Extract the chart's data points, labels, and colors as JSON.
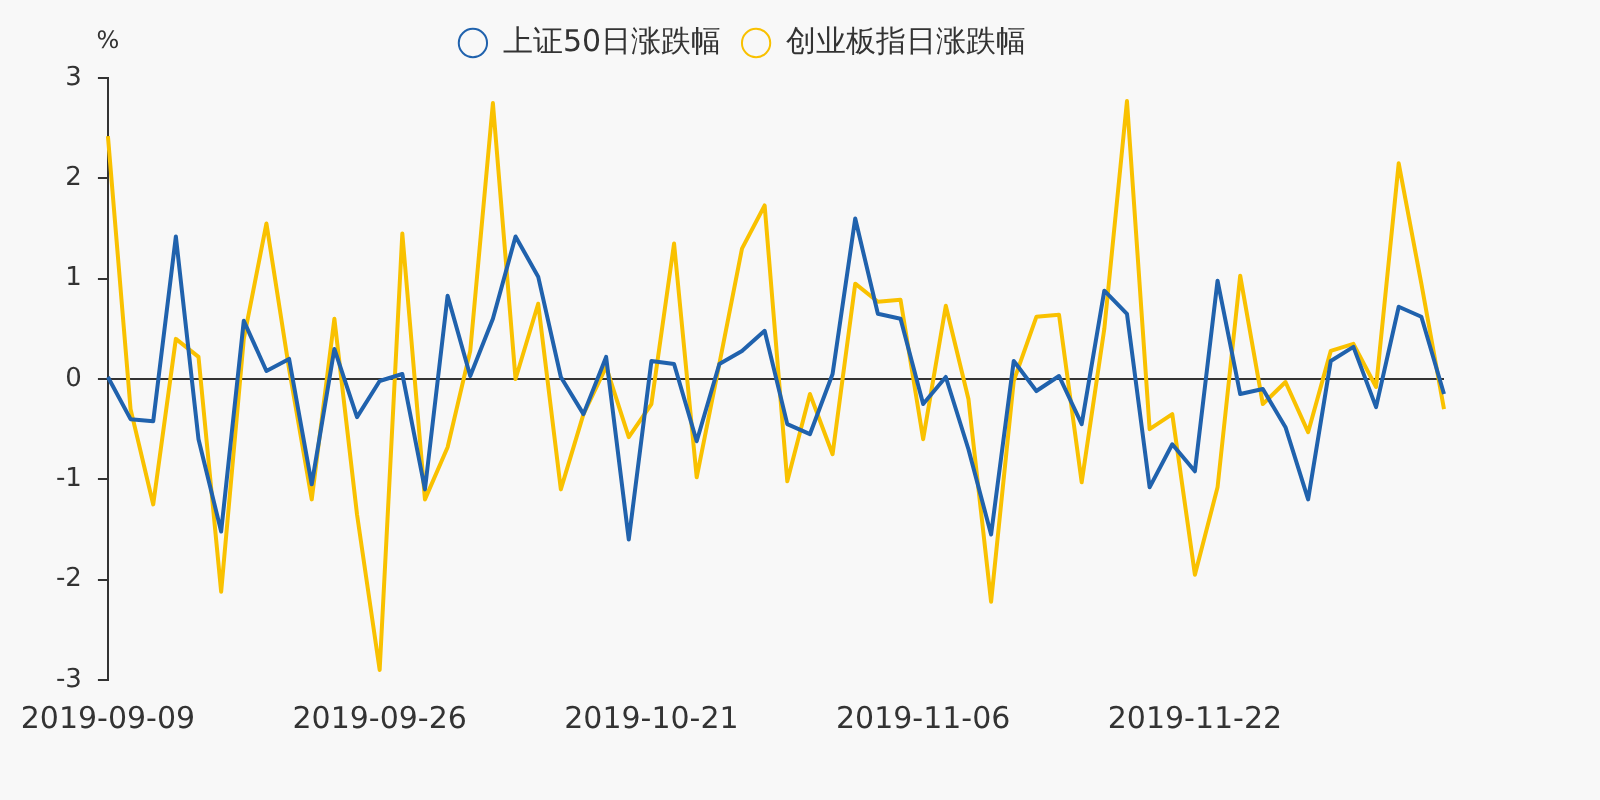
{
  "chart_data": {
    "type": "line",
    "ylabel": "%",
    "categories": [
      "2019-09-09",
      null,
      null,
      null,
      null,
      null,
      null,
      null,
      null,
      null,
      null,
      null,
      "2019-09-26",
      null,
      null,
      null,
      null,
      null,
      null,
      null,
      null,
      null,
      null,
      null,
      "2019-10-21",
      null,
      null,
      null,
      null,
      null,
      null,
      null,
      null,
      null,
      null,
      null,
      "2019-11-06",
      null,
      null,
      null,
      null,
      null,
      null,
      null,
      null,
      null,
      null,
      null,
      "2019-11-22",
      null,
      null,
      null,
      null,
      null,
      null,
      null,
      null,
      null,
      null,
      null
    ],
    "series": [
      {
        "name": "上证50日涨跌幅",
        "color": "#2062ad",
        "values": [
          0.02,
          -0.4,
          -0.42,
          1.42,
          -0.6,
          -1.52,
          0.58,
          0.08,
          0.2,
          -1.05,
          0.3,
          -0.38,
          -0.02,
          0.05,
          -1.1,
          0.83,
          0.03,
          0.6,
          1.42,
          1.02,
          0.02,
          -0.35,
          0.22,
          -1.6,
          0.18,
          0.15,
          -0.62,
          0.15,
          0.28,
          0.48,
          -0.45,
          -0.55,
          0.05,
          1.6,
          0.65,
          0.6,
          -0.25,
          0.02,
          -0.7,
          -1.55,
          0.18,
          -0.12,
          0.03,
          -0.45,
          0.88,
          0.65,
          -1.08,
          -0.65,
          -0.92,
          0.98,
          -0.15,
          -0.1,
          -0.48,
          -1.2,
          0.18,
          0.32,
          -0.28,
          0.72,
          0.62,
          -0.15
        ]
      },
      {
        "name": "创业板指日涨跌幅",
        "color": "#f9c100",
        "values": [
          2.42,
          -0.3,
          -1.25,
          0.4,
          0.22,
          -2.12,
          0.4,
          1.55,
          0.1,
          -1.2,
          0.6,
          -1.35,
          -2.9,
          1.45,
          -1.2,
          -0.68,
          0.28,
          2.75,
          0.0,
          0.75,
          -1.1,
          -0.35,
          0.12,
          -0.58,
          -0.25,
          1.35,
          -0.98,
          0.15,
          1.3,
          1.73,
          -1.02,
          -0.15,
          -0.75,
          0.95,
          0.77,
          0.79,
          -0.6,
          0.73,
          -0.2,
          -2.22,
          -0.02,
          0.62,
          0.64,
          -1.03,
          0.5,
          2.77,
          -0.5,
          -0.35,
          -1.95,
          -1.08,
          1.03,
          -0.25,
          -0.03,
          -0.53,
          0.28,
          0.35,
          -0.08,
          2.15,
          0.95,
          -0.3
        ]
      }
    ],
    "ylim": [
      -3,
      3
    ],
    "yticks": [
      -3,
      -2,
      -1,
      0,
      1,
      2,
      3
    ],
    "legend": "top",
    "line_style": "solid"
  }
}
